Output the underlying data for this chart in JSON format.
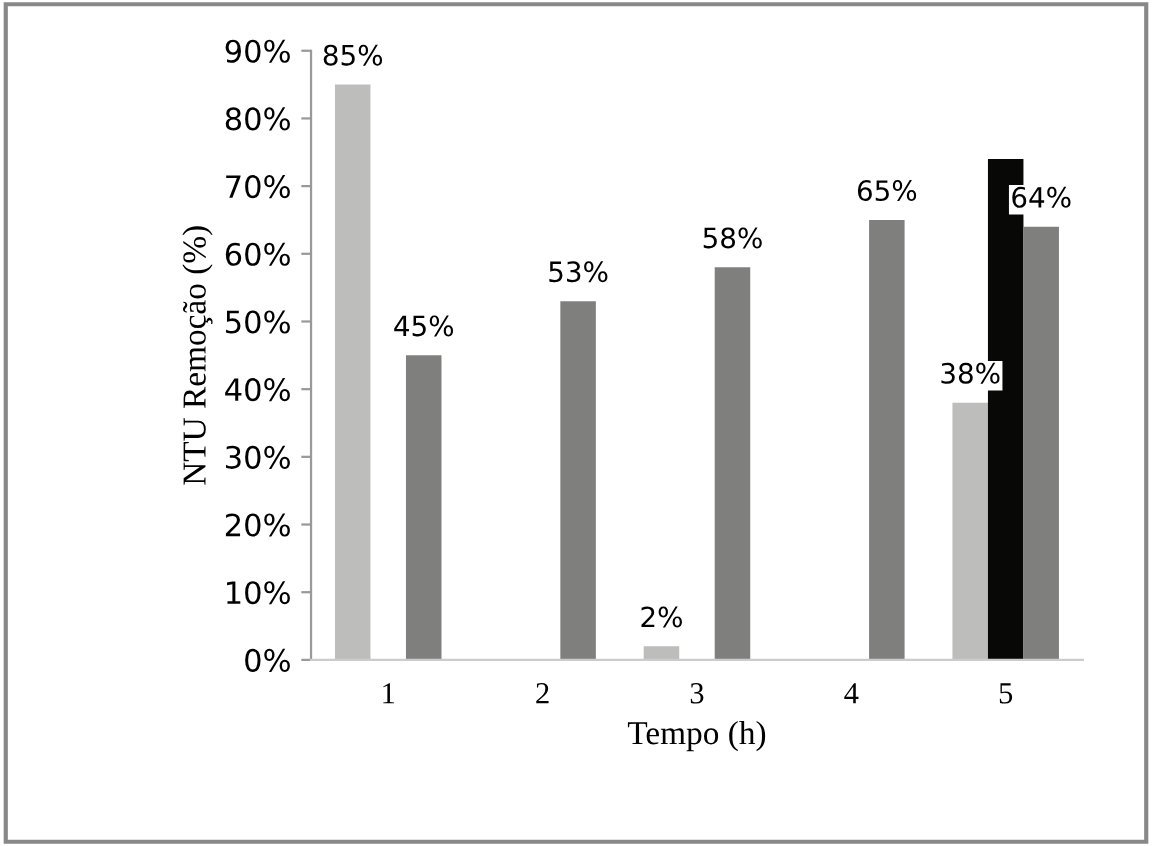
{
  "chart_data": {
    "type": "bar",
    "xlabel": "Tempo (h)",
    "ylabel": "NTU Remoção (%)",
    "categories": [
      "1",
      "2",
      "3",
      "4",
      "5"
    ],
    "series": [
      {
        "color": "#bdbdbb",
        "values": [
          85,
          null,
          2,
          null,
          38
        ],
        "value_labels": [
          "85%",
          null,
          "2%",
          null,
          "38%"
        ]
      },
      {
        "color": "#080806",
        "values": [
          null,
          null,
          null,
          null,
          74
        ],
        "value_labels": [
          null,
          null,
          null,
          null,
          null
        ]
      },
      {
        "color": "#7f7f7d",
        "values": [
          45,
          53,
          58,
          65,
          64
        ],
        "value_labels": [
          "45%",
          "53%",
          "58%",
          "65%",
          "64%"
        ]
      }
    ],
    "ylim": [
      0,
      90
    ],
    "yticks": [
      {
        "value": 0,
        "label": "0%"
      },
      {
        "value": 10,
        "label": "10%"
      },
      {
        "value": 20,
        "label": "20%"
      },
      {
        "value": 30,
        "label": "30%"
      },
      {
        "value": 40,
        "label": "40%"
      },
      {
        "value": 50,
        "label": "50%"
      },
      {
        "value": 60,
        "label": "60%"
      },
      {
        "value": 70,
        "label": "70%"
      },
      {
        "value": 80,
        "label": "80%"
      },
      {
        "value": 90,
        "label": "90%"
      }
    ],
    "grid": false,
    "legend": false
  }
}
